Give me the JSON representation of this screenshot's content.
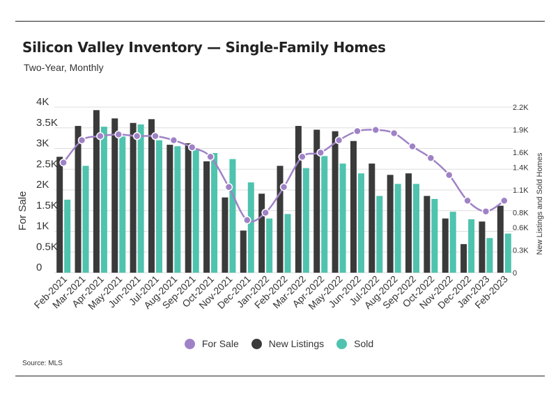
{
  "title": "Silicon Valley Inventory — Single-Family Homes",
  "subtitle": "Two-Year, Monthly",
  "source": "Source: MLS",
  "colors": {
    "for_sale": "#9f82c6",
    "new_listings": "#3a3a3a",
    "sold": "#4fc3ae",
    "grid": "#dddddd",
    "text": "#333333"
  },
  "chart_data": {
    "type": "bar",
    "grid": true,
    "legend_position": "bottom-center",
    "categories": [
      "Feb-2021",
      "Mar-2021",
      "Apr-2021",
      "May-2021",
      "Jun-2021",
      "Jul-2021",
      "Aug-2021",
      "Sep-2021",
      "Oct-2021",
      "Nov-2021",
      "Dec-2021",
      "Jan-2022",
      "Feb-2022",
      "Mar-2022",
      "Apr-2022",
      "May-2022",
      "Jun-2022",
      "Jul-2022",
      "Aug-2022",
      "Sep-2022",
      "Oct-2022",
      "Nov-2022",
      "Dec-2022",
      "Jan-2023",
      "Feb-2023"
    ],
    "ylabel": "For Sale",
    "y2label": "New Listings and Sold Homes",
    "ylim": [
      0,
      4000
    ],
    "y2lim": [
      0,
      2200
    ],
    "yticks": [
      0,
      500,
      1000,
      1500,
      2000,
      2500,
      3000,
      3500,
      4000
    ],
    "ytick_labels": [
      "0",
      "0.5K",
      "1K",
      "1.5K",
      "2K",
      "2.5K",
      "3K",
      "3.5K",
      "4K"
    ],
    "y2ticks": [
      0,
      300,
      600,
      800,
      1100,
      1400,
      1600,
      1900,
      2200
    ],
    "y2tick_labels": [
      "0",
      "0.3K",
      "0.6K",
      "0.8K",
      "1.1K",
      "1.4K",
      "1.6K",
      "1.9K",
      "2.2K"
    ],
    "series": [
      {
        "name": "For Sale",
        "type": "line",
        "axis": "left",
        "values": [
          2660,
          3200,
          3300,
          3340,
          3300,
          3300,
          3200,
          3030,
          2800,
          2070,
          1270,
          1450,
          2070,
          2800,
          2900,
          3200,
          3420,
          3450,
          3370,
          3050,
          2770,
          2360,
          1740,
          1480,
          1740
        ]
      },
      {
        "name": "New Listings",
        "type": "bar",
        "axis": "right",
        "values": [
          1540,
          1950,
          2160,
          2050,
          1990,
          2040,
          1700,
          1720,
          1480,
          1000,
          560,
          1050,
          1420,
          1950,
          1900,
          1880,
          1750,
          1450,
          1300,
          1320,
          1020,
          720,
          380,
          680,
          890
        ]
      },
      {
        "name": "Sold",
        "type": "bar",
        "axis": "right",
        "values": [
          970,
          1420,
          1940,
          1810,
          1970,
          1760,
          1680,
          1630,
          1590,
          1510,
          1200,
          720,
          780,
          1390,
          1550,
          1450,
          1320,
          1020,
          1180,
          1180,
          980,
          810,
          710,
          460,
          520
        ]
      }
    ]
  }
}
